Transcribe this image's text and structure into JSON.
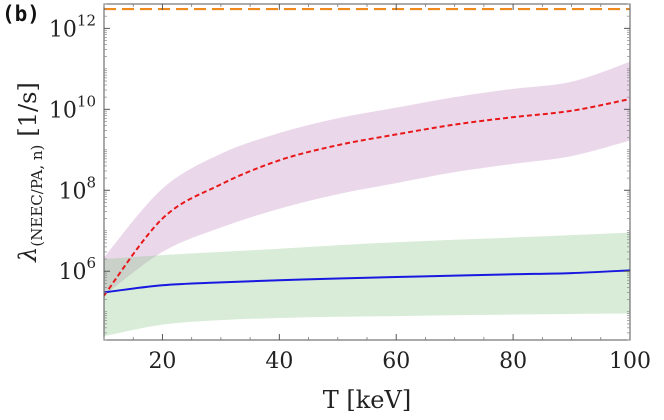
{
  "panel_label": "(b)",
  "chart_data": {
    "type": "line",
    "title": "",
    "xlabel": "T [keV]",
    "ylabel": "λ(NEEC/PA, n) [1/s]",
    "ylabel_parts": {
      "symbol": "λ",
      "subscript": "(NEEC/PA, n)",
      "unit": "[1/s]"
    },
    "xlim": [
      10,
      100
    ],
    "ylim": [
      20000.0,
      4000000000000.0
    ],
    "yscale": "log",
    "x_ticks": [
      20,
      40,
      60,
      80,
      100
    ],
    "x_tick_labels": [
      "20",
      "40",
      "60",
      "80",
      "100"
    ],
    "y_ticks": [
      1000000.0,
      100000000.0,
      10000000000.0,
      1000000000000.0
    ],
    "y_tick_labels": [
      {
        "base": "10",
        "exp": "6"
      },
      {
        "base": "10",
        "exp": "8"
      },
      {
        "base": "10",
        "exp": "10"
      },
      {
        "base": "10",
        "exp": "12"
      }
    ],
    "grid": false,
    "legend": "none",
    "x": [
      10,
      20,
      30,
      40,
      50,
      60,
      70,
      80,
      90,
      100
    ],
    "bands": [
      {
        "color": "#b374b3",
        "opacity": 0.28,
        "lower": [
          250000.0,
          3000000.0,
          12000000.0,
          35000000.0,
          80000000.0,
          150000000.0,
          280000000.0,
          450000000.0,
          700000000.0,
          1700000000.0
        ],
        "upper": [
          2200000.0,
          110000000.0,
          800000000.0,
          2600000000.0,
          6000000000.0,
          11000000000.0,
          20000000000.0,
          32000000000.0,
          48000000000.0,
          150000000000.0
        ]
      },
      {
        "color": "#7fbf7f",
        "opacity": 0.3,
        "lower": [
          25000.0,
          48000.0,
          62000.0,
          70000.0,
          75000.0,
          78000.0,
          82000.0,
          85000.0,
          88000.0,
          90000.0
        ],
        "upper": [
          2000000.0,
          2500000.0,
          3000000.0,
          3600000.0,
          4400000.0,
          5200000.0,
          6000000.0,
          6800000.0,
          7800000.0,
          9000000.0
        ]
      }
    ],
    "series": [
      {
        "color": "#e8181a",
        "dash": "dashed",
        "values": [
          250000.0,
          20000000.0,
          140000000.0,
          550000000.0,
          1300000000.0,
          2400000000.0,
          4200000000.0,
          6400000000.0,
          9200000000.0,
          18000000000.0
        ]
      },
      {
        "color": "#1818e0",
        "dash": "solid",
        "values": [
          300000.0,
          450000.0,
          530000.0,
          600000.0,
          660000.0,
          720000.0,
          780000.0,
          840000.0,
          900000.0,
          1050000.0
        ]
      }
    ],
    "reference_lines": [
      {
        "orientation": "horizontal",
        "y": 3000000000000.0,
        "color": "#f08a1e",
        "dash": "dashed"
      }
    ]
  }
}
